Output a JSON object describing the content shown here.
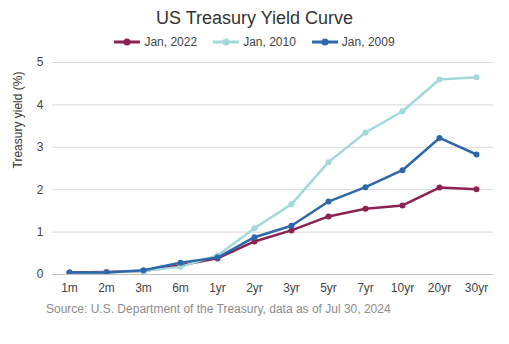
{
  "chart_data": {
    "type": "line",
    "title": "US Treasury Yield Curve",
    "y_label": "Treasury yield (%)",
    "caption": "Source: U.S. Department of the Treasury, data as of Jul 30, 2024",
    "categories": [
      "1m",
      "2m",
      "3m",
      "6m",
      "1yr",
      "2yr",
      "3yr",
      "5yr",
      "7yr",
      "10yr",
      "20yr",
      "30yr"
    ],
    "series": [
      {
        "name": "Jan, 2022",
        "color": "#8b2252",
        "values": [
          0.05,
          0.06,
          0.08,
          0.22,
          0.38,
          0.78,
          1.04,
          1.37,
          1.55,
          1.63,
          2.05,
          2.01
        ]
      },
      {
        "name": "Jan, 2010",
        "color": "#a3d9d9",
        "values": [
          0.02,
          0.05,
          0.08,
          0.18,
          0.45,
          1.09,
          1.66,
          2.65,
          3.35,
          3.85,
          4.6,
          4.65
        ]
      },
      {
        "name": "Jan, 2009",
        "color": "#2e68aa",
        "values": [
          0.05,
          0.05,
          0.1,
          0.28,
          0.4,
          0.88,
          1.15,
          1.72,
          2.06,
          2.46,
          3.22,
          2.83
        ]
      }
    ],
    "ylim": [
      0,
      5
    ],
    "yticks": [
      0,
      1,
      2,
      3,
      4,
      5
    ],
    "grid": true,
    "legend": "top",
    "marker": "circle"
  }
}
